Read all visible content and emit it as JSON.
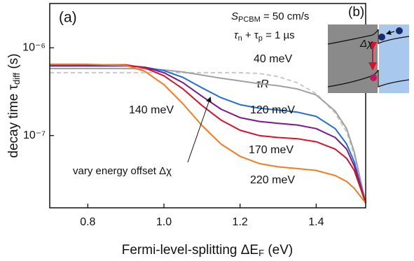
{
  "chart_data": {
    "type": "line",
    "title": "(a)",
    "xlabel": [
      "Fermi-level-splitting ΔE",
      "F",
      " (eV)"
    ],
    "ylabel": [
      "decay time τ",
      "diff",
      " (s)"
    ],
    "annotations": {
      "s_pcbm": [
        "S",
        "PCBM",
        " = 50 cm/s"
      ],
      "tau_sum": [
        "τ",
        "n",
        " + τ",
        "p",
        " = 1 µs"
      ],
      "arrow_text": "vary energy offset Δχ"
    },
    "ylog": true,
    "xlim": [
      0.7,
      1.53
    ],
    "xticks": [
      0.8,
      {
        "value": 1,
        "label": "1.0"
      },
      1.2,
      1.4
    ],
    "ylim": [
      1.5e-08,
      3.2e-06
    ],
    "yticks": [
      {
        "value": 1e-07,
        "label": "10⁻⁷"
      },
      {
        "value": 1e-06,
        "label": "10⁻⁶"
      }
    ],
    "x": [
      0.7,
      0.8,
      0.9,
      0.95,
      1.0,
      1.05,
      1.1,
      1.15,
      1.2,
      1.25,
      1.3,
      1.35,
      1.4,
      1.45,
      1.48,
      1.5,
      1.53
    ],
    "series": [
      {
        "name": "τR",
        "color": "#c8c8c8",
        "dash": true,
        "values": [
          5.2e-07,
          5.2e-07,
          5.2e-07,
          5.2e-07,
          5.2e-07,
          5.2e-07,
          5.2e-07,
          5.2e-07,
          5.2e-07,
          5.1e-07,
          4.7e-07,
          4e-07,
          3e-07,
          1.8e-07,
          1.1e-07,
          6e-08,
          1.7e-08
        ]
      },
      {
        "name": "40 meV",
        "color": "#a0a0a0",
        "values": [
          5.8e-07,
          5.8e-07,
          5.8e-07,
          5.75e-07,
          5.6e-07,
          5.3e-07,
          4.9e-07,
          4.5e-07,
          4.2e-07,
          3.9e-07,
          3.7e-07,
          3.4e-07,
          2.9e-07,
          1.9e-07,
          1.2e-07,
          6.5e-08,
          1.7e-08
        ]
      },
      {
        "name": "120 meV",
        "color": "#1f6fd6",
        "values": [
          6.2e-07,
          6.2e-07,
          6.2e-07,
          6e-07,
          5.5e-07,
          4.6e-07,
          3.5e-07,
          2.7e-07,
          2.25e-07,
          2.05e-07,
          1.95e-07,
          1.85e-07,
          1.65e-07,
          1.2e-07,
          8e-08,
          5e-08,
          1.7e-08
        ]
      },
      {
        "name": "140 meV",
        "color": "#7a1a8a",
        "values": [
          6.3e-07,
          6.3e-07,
          6.3e-07,
          6e-07,
          5.2e-07,
          4e-07,
          2.8e-07,
          2e-07,
          1.6e-07,
          1.45e-07,
          1.38e-07,
          1.32e-07,
          1.2e-07,
          9.5e-08,
          7e-08,
          4.5e-08,
          1.7e-08
        ]
      },
      {
        "name": "170 meV",
        "color": "#d8122a",
        "values": [
          6.4e-07,
          6.4e-07,
          6.4e-07,
          5.9e-07,
          4.8e-07,
          3.4e-07,
          2.2e-07,
          1.5e-07,
          1.15e-07,
          1e-07,
          9.5e-08,
          9.2e-08,
          8.5e-08,
          7e-08,
          5.5e-08,
          4e-08,
          1.7e-08
        ]
      },
      {
        "name": "220 meV",
        "color": "#f07d22",
        "values": [
          6.5e-07,
          6.5e-07,
          6.3e-07,
          5.4e-07,
          3.8e-07,
          2.3e-07,
          1.3e-07,
          8e-08,
          5.8e-08,
          4.8e-08,
          4.4e-08,
          4.2e-08,
          4e-08,
          3.5e-08,
          3e-08,
          2.5e-08,
          1.7e-08
        ]
      }
    ]
  },
  "diagram": {
    "label": "(b)",
    "offset": "Δχ"
  }
}
